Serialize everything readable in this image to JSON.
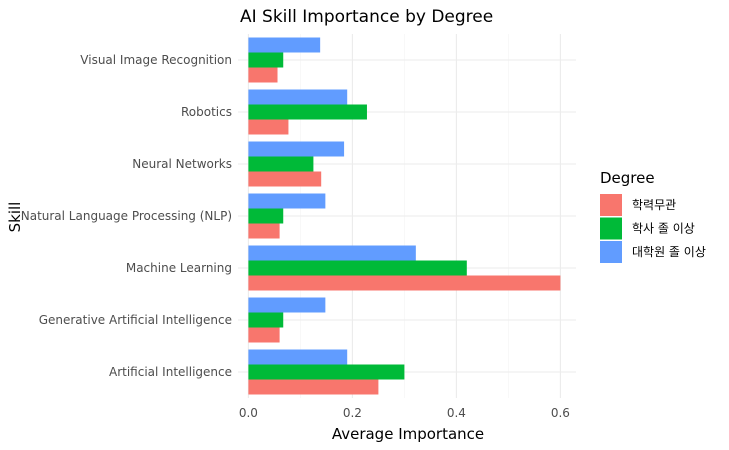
{
  "chart_data": {
    "type": "bar",
    "orientation": "horizontal",
    "title": "AI Skill Importance by Degree",
    "xlabel": "Average Importance",
    "ylabel": "Skill",
    "xlim": [
      -0.02,
      0.63
    ],
    "xticks": [
      0.0,
      0.2,
      0.4,
      0.6
    ],
    "xtick_labels": [
      "0.0",
      "0.2",
      "0.4",
      "0.6"
    ],
    "grid": true,
    "legend_title": "Degree",
    "legend_position": "right",
    "categories": [
      "Artificial Intelligence",
      "Generative Artificial Intelligence",
      "Machine Learning",
      "Natural Language Processing (NLP)",
      "Neural Networks",
      "Robotics",
      "Visual Image Recognition"
    ],
    "series": [
      {
        "name": "학력무관",
        "color": "#F8766D",
        "values": [
          0.25,
          0.06,
          0.6,
          0.06,
          0.14,
          0.077,
          0.056
        ]
      },
      {
        "name": "학사 졸 이상",
        "color": "#00BA38",
        "values": [
          0.3,
          0.067,
          0.42,
          0.067,
          0.125,
          0.228,
          0.067
        ]
      },
      {
        "name": "대학원 졸 이상",
        "color": "#619CFF",
        "values": [
          0.19,
          0.148,
          0.322,
          0.148,
          0.184,
          0.19,
          0.138
        ]
      }
    ]
  }
}
